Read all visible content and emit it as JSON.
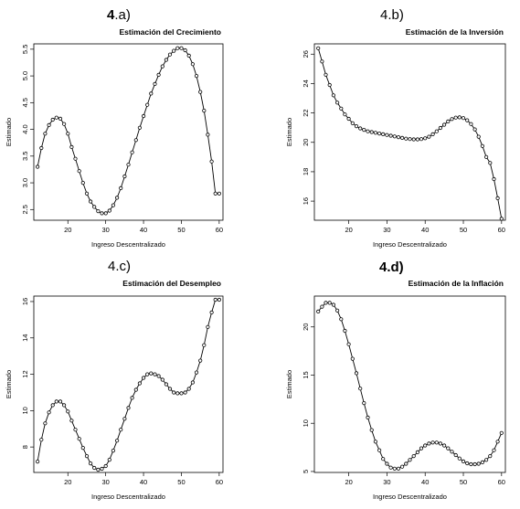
{
  "panel_labels": [
    {
      "num": "4",
      "letter": ".a)"
    },
    {
      "num": "4",
      "letter": ".b)"
    },
    {
      "num": "4",
      "letter": ".c)"
    },
    {
      "num": "4.",
      "letter": "d)"
    }
  ],
  "chart_data": [
    {
      "type": "line",
      "title": "Estimación del Crecimiento",
      "xlabel": "Ingreso Descentralizado",
      "ylabel": "Estimado",
      "xlim": [
        11,
        61
      ],
      "ylim": [
        2.3,
        5.6
      ],
      "xticks": [
        20,
        30,
        40,
        50,
        60
      ],
      "yticks": [
        2.5,
        3.0,
        3.5,
        4.0,
        4.5,
        5.0,
        5.5
      ],
      "ytick_labels": [
        "2.5",
        "3.0",
        "3.5",
        "4.0",
        "4.5",
        "5.0",
        "5.5"
      ],
      "x": [
        12,
        13,
        14,
        15,
        16,
        17,
        18,
        19,
        20,
        21,
        22,
        23,
        24,
        25,
        26,
        27,
        28,
        29,
        30,
        31,
        32,
        33,
        34,
        35,
        36,
        37,
        38,
        39,
        40,
        41,
        42,
        43,
        44,
        45,
        46,
        47,
        48,
        49,
        50,
        51,
        52,
        53,
        54,
        55,
        56,
        57,
        58,
        59,
        60
      ],
      "y": [
        3.3,
        3.65,
        3.92,
        4.08,
        4.18,
        4.22,
        4.2,
        4.1,
        3.92,
        3.67,
        3.45,
        3.22,
        3.0,
        2.8,
        2.65,
        2.55,
        2.47,
        2.43,
        2.43,
        2.48,
        2.58,
        2.72,
        2.9,
        3.12,
        3.34,
        3.57,
        3.8,
        4.03,
        4.25,
        4.46,
        4.67,
        4.85,
        5.02,
        5.18,
        5.3,
        5.4,
        5.47,
        5.52,
        5.52,
        5.48,
        5.38,
        5.22,
        5.0,
        4.7,
        4.35,
        3.9,
        3.4,
        2.8,
        2.8
      ],
      "grid": false
    },
    {
      "type": "line",
      "title": "Estimación de la Inversión",
      "xlabel": "Ingreso Descentralizado",
      "ylabel": "Estimado",
      "xlim": [
        11,
        61
      ],
      "ylim": [
        14.7,
        26.7
      ],
      "xticks": [
        20,
        30,
        40,
        50,
        60
      ],
      "yticks": [
        16,
        18,
        20,
        22,
        24,
        26
      ],
      "ytick_labels": [
        "16",
        "18",
        "20",
        "22",
        "24",
        "26"
      ],
      "x": [
        12,
        13,
        14,
        15,
        16,
        17,
        18,
        19,
        20,
        21,
        22,
        23,
        24,
        25,
        26,
        27,
        28,
        29,
        30,
        31,
        32,
        33,
        34,
        35,
        36,
        37,
        38,
        39,
        40,
        41,
        42,
        43,
        44,
        45,
        46,
        47,
        48,
        49,
        50,
        51,
        52,
        53,
        54,
        55,
        56,
        57,
        58,
        59,
        60
      ],
      "y": [
        26.4,
        25.5,
        24.6,
        23.9,
        23.2,
        22.7,
        22.3,
        21.9,
        21.6,
        21.3,
        21.1,
        20.95,
        20.85,
        20.75,
        20.7,
        20.65,
        20.6,
        20.55,
        20.5,
        20.45,
        20.4,
        20.35,
        20.3,
        20.25,
        20.22,
        20.2,
        20.2,
        20.22,
        20.28,
        20.38,
        20.55,
        20.75,
        20.98,
        21.2,
        21.42,
        21.58,
        21.68,
        21.7,
        21.65,
        21.5,
        21.25,
        20.88,
        20.38,
        19.75,
        19.0,
        18.6,
        17.5,
        16.2,
        14.8
      ],
      "grid": false
    },
    {
      "type": "line",
      "title": "Estimación del Desempleo",
      "xlabel": "Ingreso Descentralizado",
      "ylabel": "Estimado",
      "xlim": [
        11,
        61
      ],
      "ylim": [
        6.6,
        16.3
      ],
      "xticks": [
        20,
        30,
        40,
        50,
        60
      ],
      "yticks": [
        8,
        10,
        12,
        14,
        16
      ],
      "ytick_labels": [
        "8",
        "10",
        "12",
        "14",
        "16"
      ],
      "x": [
        12,
        13,
        14,
        15,
        16,
        17,
        18,
        19,
        20,
        21,
        22,
        23,
        24,
        25,
        26,
        27,
        28,
        29,
        30,
        31,
        32,
        33,
        34,
        35,
        36,
        37,
        38,
        39,
        40,
        41,
        42,
        43,
        44,
        45,
        46,
        47,
        48,
        49,
        50,
        51,
        52,
        53,
        54,
        55,
        56,
        57,
        58,
        59,
        60
      ],
      "y": [
        7.2,
        8.4,
        9.3,
        9.9,
        10.3,
        10.5,
        10.5,
        10.3,
        9.95,
        9.45,
        8.95,
        8.45,
        7.95,
        7.5,
        7.1,
        6.85,
        6.75,
        6.8,
        6.95,
        7.3,
        7.8,
        8.35,
        8.95,
        9.55,
        10.15,
        10.7,
        11.15,
        11.5,
        11.8,
        12.0,
        12.05,
        12.0,
        11.9,
        11.7,
        11.45,
        11.2,
        11.0,
        10.95,
        10.95,
        11.0,
        11.2,
        11.55,
        12.1,
        12.75,
        13.6,
        14.6,
        15.4,
        16.1,
        16.1
      ],
      "grid": false
    },
    {
      "type": "line",
      "title": "Estimación de la Inflación",
      "xlabel": "Ingreso Descentralizado",
      "ylabel": "Estimado",
      "xlim": [
        11,
        61
      ],
      "ylim": [
        4.9,
        23.2
      ],
      "xticks": [
        20,
        30,
        40,
        50,
        60
      ],
      "yticks": [
        5,
        10,
        15,
        20
      ],
      "ytick_labels": [
        "5",
        "10",
        "15",
        "20"
      ],
      "x": [
        12,
        13,
        14,
        15,
        16,
        17,
        18,
        19,
        20,
        21,
        22,
        23,
        24,
        25,
        26,
        27,
        28,
        29,
        30,
        31,
        32,
        33,
        34,
        35,
        36,
        37,
        38,
        39,
        40,
        41,
        42,
        43,
        44,
        45,
        46,
        47,
        48,
        49,
        50,
        51,
        52,
        53,
        54,
        55,
        56,
        57,
        58,
        59,
        60
      ],
      "y": [
        21.6,
        22.1,
        22.5,
        22.5,
        22.3,
        21.7,
        20.8,
        19.6,
        18.2,
        16.7,
        15.2,
        13.6,
        12.1,
        10.6,
        9.3,
        8.1,
        7.2,
        6.3,
        5.8,
        5.4,
        5.3,
        5.3,
        5.5,
        5.8,
        6.2,
        6.6,
        7.0,
        7.4,
        7.7,
        7.9,
        8.0,
        8.0,
        7.9,
        7.7,
        7.4,
        7.05,
        6.7,
        6.35,
        6.05,
        5.85,
        5.75,
        5.75,
        5.8,
        5.95,
        6.2,
        6.6,
        7.2,
        8.1,
        9.0
      ],
      "grid": false
    }
  ]
}
